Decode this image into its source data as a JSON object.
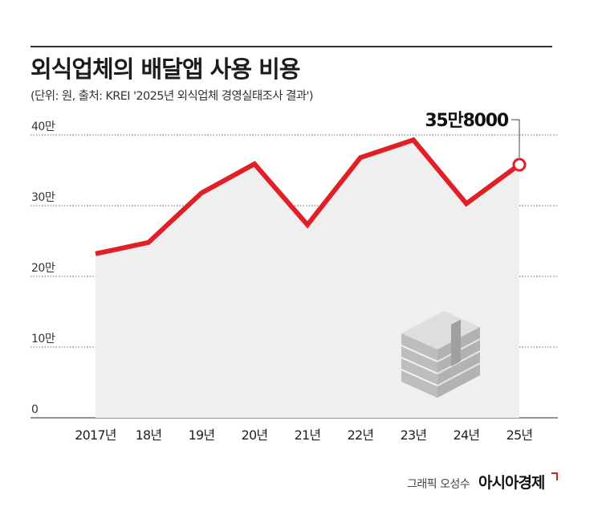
{
  "header": {
    "title": "외식업체의 배달앱 사용 비용",
    "subtitle": "(단위: 원, 출처: KREI '2025년 외식업체 경영실태조사 결과')"
  },
  "chart_data": {
    "type": "area",
    "title": "외식업체의 배달앱 사용 비용",
    "categories": [
      "2017년",
      "18년",
      "19년",
      "20년",
      "21년",
      "22년",
      "23년",
      "24년",
      "25년"
    ],
    "values": [
      232000,
      248000,
      318000,
      359000,
      273000,
      368000,
      393000,
      303000,
      358000
    ],
    "y_ticks": [
      {
        "value": 0,
        "label": "0"
      },
      {
        "value": 100000,
        "label": "10만"
      },
      {
        "value": 200000,
        "label": "20만"
      },
      {
        "value": 300000,
        "label": "30만"
      },
      {
        "value": 400000,
        "label": "40만"
      }
    ],
    "ylim": [
      0,
      400000
    ],
    "grid": true,
    "line_color": "#e01f26",
    "area_color": "#efefef",
    "annotation": {
      "index": 8,
      "label": "35만8000"
    }
  },
  "footer": {
    "credit": "그래픽 오성수",
    "brand": "아시아경제"
  },
  "icons": {
    "decoration": "money-stack-icon"
  }
}
